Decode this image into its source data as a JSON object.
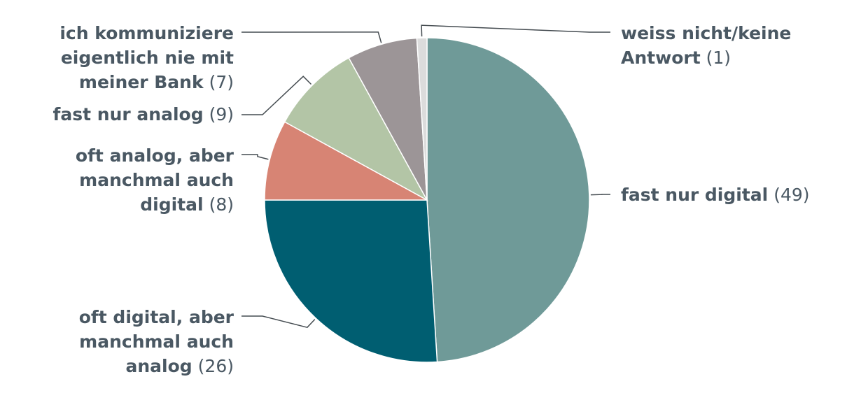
{
  "chart_data": {
    "type": "pie",
    "unit_format": "({v})",
    "slices": [
      {
        "label": "fast nur digital",
        "value": 49,
        "color": "#6f9a98"
      },
      {
        "label": "oft digital, aber manchmal auch analog",
        "value": 26,
        "color": "#005e71"
      },
      {
        "label": "oft analog, aber manchmal auch digital",
        "value": 8,
        "color": "#d78474"
      },
      {
        "label": "fast nur analog",
        "value": 9,
        "color": "#b3c5a6"
      },
      {
        "label": "ich kommuniziere eigentlich nie mit meiner Bank",
        "value": 7,
        "color": "#9c9597"
      },
      {
        "label": "weiss nicht/keine Antwort",
        "value": 1,
        "color": "#dcdcdc"
      }
    ],
    "label_lines": [
      [
        "fast nur digital"
      ],
      [
        "oft digital, aber",
        "manchmal auch",
        "analog"
      ],
      [
        "oft analog, aber",
        "manchmal auch",
        "digital"
      ],
      [
        "fast nur analog"
      ],
      [
        "ich kommuniziere",
        "eigentlich nie mit",
        "meiner Bank"
      ],
      [
        "weiss nicht/keine",
        "Antwort"
      ]
    ],
    "value_labels": [
      "49",
      "26",
      "8",
      "9",
      "7",
      "1"
    ],
    "start_angle": "12 o'clock",
    "direction": "clockwise",
    "legend": "none"
  }
}
